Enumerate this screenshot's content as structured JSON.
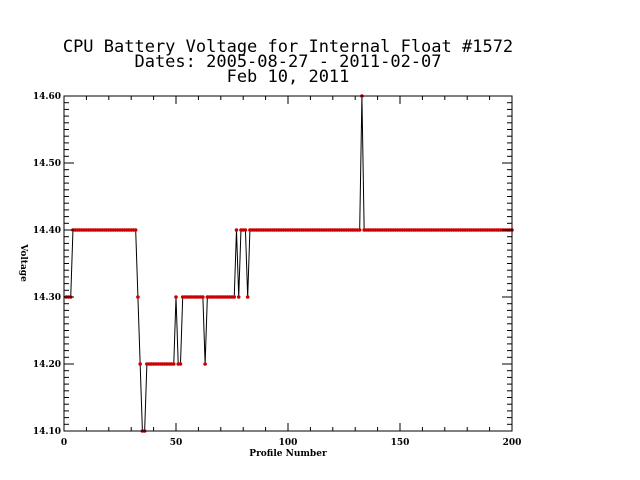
{
  "chart_data": {
    "type": "line",
    "title": [
      "CPU Battery Voltage for Internal Float #1572",
      "Dates:  2005-08-27 -  2011-02-07",
      "Feb 10, 2011"
    ],
    "xlabel": "Profile Number",
    "ylabel": "Voltage",
    "xlim": [
      0,
      200
    ],
    "ylim": [
      14.1,
      14.6
    ],
    "x_ticks": [
      0,
      50,
      100,
      150,
      200
    ],
    "y_ticks": [
      14.1,
      14.2,
      14.3,
      14.4,
      14.5,
      14.6
    ],
    "y_tick_labels": [
      "14.10",
      "14.20",
      "14.30",
      "14.40",
      "14.50",
      "14.60"
    ],
    "grid": false,
    "line_color": "#000000",
    "marker_color": "#cc0000",
    "series": [
      {
        "x": [
          1,
          2,
          3,
          4,
          5,
          6,
          7,
          8,
          9,
          10,
          11,
          12,
          13,
          14,
          15,
          16,
          17,
          18,
          19,
          20,
          21,
          22,
          23,
          24,
          25,
          26,
          27,
          28,
          29,
          30,
          31,
          32,
          33,
          34,
          35,
          36,
          37,
          38,
          39,
          40,
          41,
          42,
          43,
          44,
          45,
          46,
          47,
          48,
          49,
          50,
          51,
          52,
          53,
          54,
          55,
          56,
          57,
          58,
          59,
          60,
          61,
          62,
          63,
          64,
          65,
          66,
          67,
          68,
          69,
          70,
          71,
          72,
          73,
          74,
          75,
          76,
          77,
          78,
          79,
          80,
          81,
          82,
          83,
          84,
          85,
          86,
          87,
          88,
          89,
          90,
          91,
          92,
          93,
          94,
          95,
          96,
          97,
          98,
          99,
          100,
          101,
          102,
          103,
          104,
          105,
          106,
          107,
          108,
          109,
          110,
          111,
          112,
          113,
          114,
          115,
          116,
          117,
          118,
          119,
          120,
          121,
          122,
          123,
          124,
          125,
          126,
          127,
          128,
          129,
          130,
          131,
          132,
          133,
          134,
          135,
          136,
          137,
          138,
          139,
          140,
          141,
          142,
          143,
          144,
          145,
          146,
          147,
          148,
          149,
          150,
          151,
          152,
          153,
          154,
          155,
          156,
          157,
          158,
          159,
          160,
          161,
          162,
          163,
          164,
          165,
          166,
          167,
          168,
          169,
          170,
          171,
          172,
          173,
          174,
          175,
          176,
          177,
          178,
          179,
          180,
          181,
          182,
          183,
          184,
          185,
          186,
          187,
          188,
          189,
          190,
          191,
          192,
          193,
          194,
          195,
          196,
          197,
          198,
          199,
          200
        ],
        "y": [
          14.3,
          14.3,
          14.3,
          14.4,
          14.4,
          14.4,
          14.4,
          14.4,
          14.4,
          14.4,
          14.4,
          14.4,
          14.4,
          14.4,
          14.4,
          14.4,
          14.4,
          14.4,
          14.4,
          14.4,
          14.4,
          14.4,
          14.4,
          14.4,
          14.4,
          14.4,
          14.4,
          14.4,
          14.4,
          14.4,
          14.4,
          14.4,
          14.3,
          14.2,
          14.1,
          14.1,
          14.2,
          14.2,
          14.2,
          14.2,
          14.2,
          14.2,
          14.2,
          14.2,
          14.2,
          14.2,
          14.2,
          14.2,
          14.2,
          14.3,
          14.2,
          14.2,
          14.3,
          14.3,
          14.3,
          14.3,
          14.3,
          14.3,
          14.3,
          14.3,
          14.3,
          14.3,
          14.2,
          14.3,
          14.3,
          14.3,
          14.3,
          14.3,
          14.3,
          14.3,
          14.3,
          14.3,
          14.3,
          14.3,
          14.3,
          14.3,
          14.4,
          14.3,
          14.4,
          14.4,
          14.4,
          14.3,
          14.4,
          14.4,
          14.4,
          14.4,
          14.4,
          14.4,
          14.4,
          14.4,
          14.4,
          14.4,
          14.4,
          14.4,
          14.4,
          14.4,
          14.4,
          14.4,
          14.4,
          14.4,
          14.4,
          14.4,
          14.4,
          14.4,
          14.4,
          14.4,
          14.4,
          14.4,
          14.4,
          14.4,
          14.4,
          14.4,
          14.4,
          14.4,
          14.4,
          14.4,
          14.4,
          14.4,
          14.4,
          14.4,
          14.4,
          14.4,
          14.4,
          14.4,
          14.4,
          14.4,
          14.4,
          14.4,
          14.4,
          14.4,
          14.4,
          14.4,
          14.6,
          14.4,
          14.4,
          14.4,
          14.4,
          14.4,
          14.4,
          14.4,
          14.4,
          14.4,
          14.4,
          14.4,
          14.4,
          14.4,
          14.4,
          14.4,
          14.4,
          14.4,
          14.4,
          14.4,
          14.4,
          14.4,
          14.4,
          14.4,
          14.4,
          14.4,
          14.4,
          14.4,
          14.4,
          14.4,
          14.4,
          14.4,
          14.4,
          14.4,
          14.4,
          14.4,
          14.4,
          14.4,
          14.4,
          14.4,
          14.4,
          14.4,
          14.4,
          14.4,
          14.4,
          14.4,
          14.4,
          14.4,
          14.4,
          14.4,
          14.4,
          14.4,
          14.4,
          14.4,
          14.4,
          14.4,
          14.4,
          14.4,
          14.4,
          14.4,
          14.4,
          14.4,
          14.4,
          14.4,
          14.4,
          14.4,
          14.4,
          14.4
        ]
      }
    ]
  }
}
